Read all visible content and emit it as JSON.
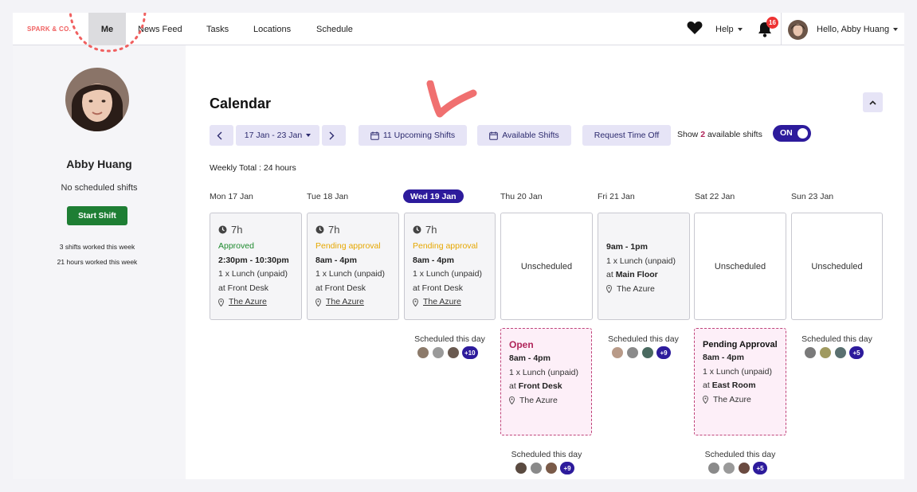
{
  "nav": {
    "brand": "SPARK & CO.",
    "me": "Me",
    "news_feed": "News Feed",
    "tasks": "Tasks",
    "locations": "Locations",
    "schedule": "Schedule",
    "help": "Help",
    "notification_count": "16",
    "greeting": "Hello, Abby Huang"
  },
  "sidebar": {
    "name": "Abby Huang",
    "no_shifts": "No scheduled shifts",
    "start_shift": "Start Shift",
    "shifts_worked": "3 shifts worked this week",
    "hours_worked": "21 hours worked this week"
  },
  "calendar": {
    "title": "Calendar",
    "date_range": "17 Jan - 23 Jan",
    "upcoming": "11 Upcoming Shifts",
    "available": "Available Shifts",
    "request_off": "Request Time Off",
    "show_prefix": "Show",
    "show_count": "2",
    "show_suffix": "available shifts",
    "toggle": "ON",
    "weekly_total": "Weekly Total : 24 hours"
  },
  "days": [
    {
      "label": "Mon 17 Jan"
    },
    {
      "label": "Tue 18 Jan"
    },
    {
      "label": "Wed 19 Jan"
    },
    {
      "label": "Thu 20 Jan"
    },
    {
      "label": "Fri 21 Jan"
    },
    {
      "label": "Sat 22 Jan"
    },
    {
      "label": "Sun 23 Jan"
    }
  ],
  "shifts": {
    "mon": {
      "hours": "7h",
      "status": "Approved",
      "time": "2:30pm - 10:30pm",
      "break": "1 x Lunch (unpaid)",
      "at": "at Front Desk",
      "venue": "The Azure"
    },
    "tue": {
      "hours": "7h",
      "status": "Pending approval",
      "time": "8am - 4pm",
      "break": "1 x Lunch (unpaid)",
      "at": "at Front Desk",
      "venue": "The Azure"
    },
    "wed": {
      "hours": "7h",
      "status": "Pending approval",
      "time": "8am - 4pm",
      "break": "1 x Lunch (unpaid)",
      "at": "at Front Desk",
      "venue": "The Azure"
    },
    "fri": {
      "time": "9am - 1pm",
      "break": "1 x Lunch (unpaid)",
      "at_prefix": "at",
      "at_place": "Main Floor",
      "venue": "The Azure"
    }
  },
  "unscheduled": "Unscheduled",
  "open_shifts": {
    "thu": {
      "title": "Open",
      "time": "8am - 4pm",
      "break": "1 x Lunch (unpaid)",
      "at_prefix": "at",
      "at_place": "Front Desk",
      "venue": "The Azure"
    },
    "sat": {
      "title": "Pending Approval",
      "time": "8am - 4pm",
      "break": "1 x Lunch (unpaid)",
      "at_prefix": "at",
      "at_place": "East Room",
      "venue": "The Azure"
    }
  },
  "scheduled_label": "Scheduled this day",
  "scheduled_counts": {
    "wed": "+10",
    "fri": "+9",
    "sun": "+5",
    "thu": "+9",
    "sat": "+5"
  },
  "colors": {
    "accent": "#2d1b9c",
    "approved": "#1e8a2e",
    "pending": "#e6a700",
    "open": "#b0255a",
    "start_button": "#1e7e34"
  }
}
